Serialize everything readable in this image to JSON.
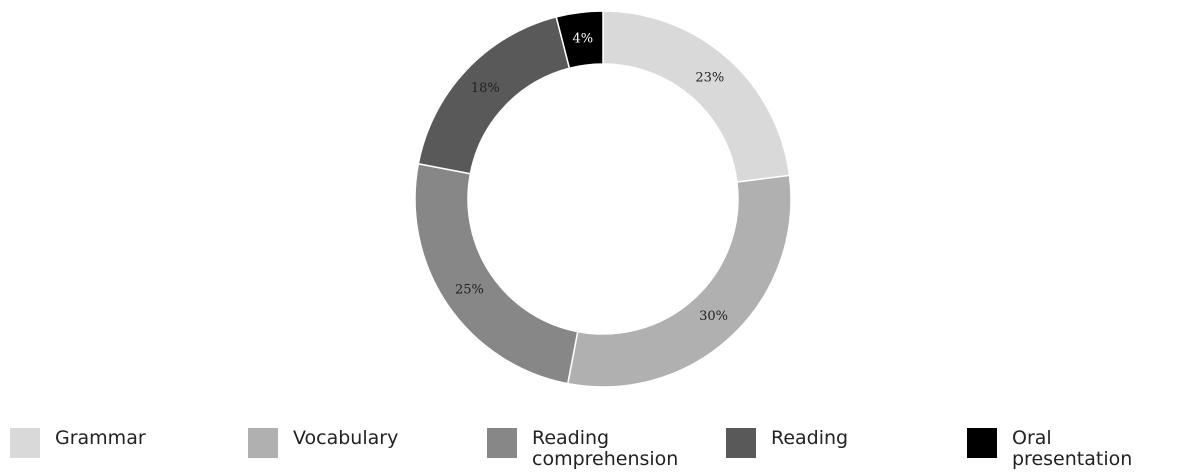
{
  "chart_data": {
    "type": "donut",
    "categories": [
      "Grammar",
      "Vocabulary",
      "Reading comprehension",
      "Reading",
      "Oral presentation"
    ],
    "values": [
      23,
      30,
      25,
      18,
      4
    ],
    "value_labels": [
      "23%",
      "30%",
      "25%",
      "18%",
      "4%"
    ],
    "colors": [
      "#d9d9d9",
      "#b0b0b0",
      "#878787",
      "#595959",
      "#000000"
    ],
    "legend": "bottom"
  }
}
